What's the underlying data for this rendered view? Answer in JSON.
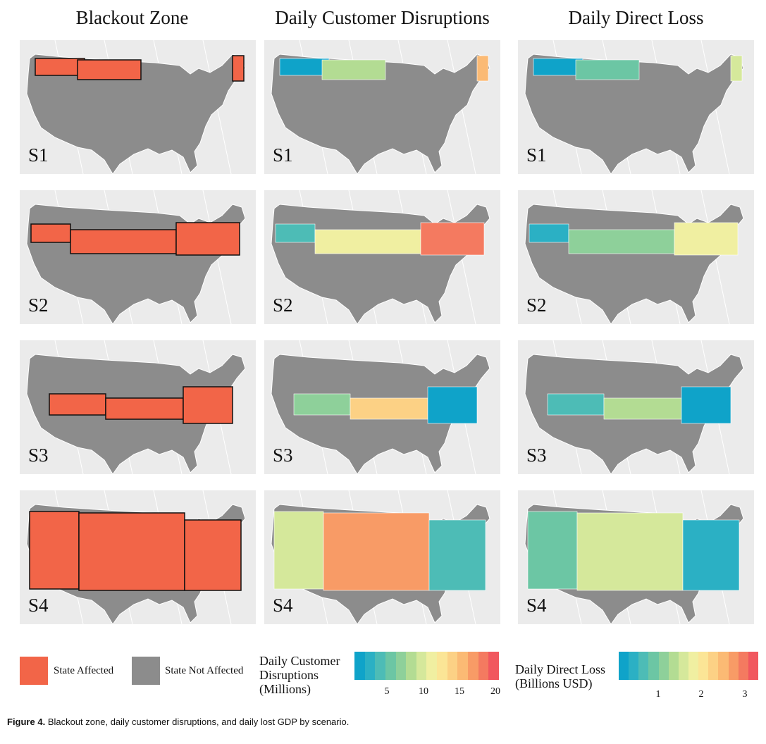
{
  "columns": [
    {
      "title": "Blackout Zone"
    },
    {
      "title": "Daily Customer Disruptions"
    },
    {
      "title": "Daily Direct Loss"
    }
  ],
  "scenarios": [
    {
      "label": "S1"
    },
    {
      "label": "S2"
    },
    {
      "label": "S3"
    },
    {
      "label": "S4"
    }
  ],
  "legend": {
    "affected_label": "State Affected",
    "not_affected_label": "State Not Affected",
    "affected_color": "#f26548",
    "not_affected_color": "#8c8c8c",
    "disruptions_title": [
      "Daily Customer",
      "Disruptions",
      "(Millions)"
    ],
    "disruptions_ticks": [
      "5",
      "10",
      "15",
      "20"
    ],
    "loss_title": [
      "Daily Direct Loss",
      "(Billions USD)"
    ],
    "loss_ticks": [
      "1",
      "2",
      "3"
    ]
  },
  "caption": {
    "label": "Figure 4.",
    "text": "Blackout zone, daily customer disruptions, and daily lost GDP by scenario."
  },
  "colors": {
    "background": "#ebebeb",
    "state_unaffected": "#8c8c8c",
    "state_affected": "#f26548",
    "colorscale": [
      "#0fa3c9",
      "#2bb0c4",
      "#4dbcb6",
      "#6cc6a4",
      "#8ed09a",
      "#b3dc93",
      "#d5e89b",
      "#f0efa1",
      "#fbe596",
      "#fcd185",
      "#fbba74",
      "#f89b66",
      "#f47a60",
      "#f1575e"
    ]
  }
}
